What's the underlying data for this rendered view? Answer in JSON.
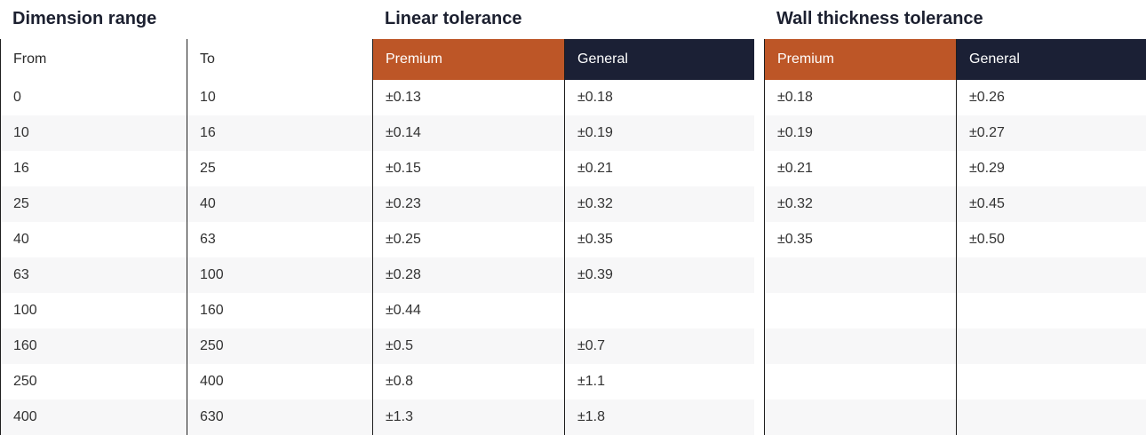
{
  "titles": {
    "dimension_range": "Dimension range",
    "linear_tolerance": "Linear tolerance",
    "wall_thickness_tolerance": "Wall thickness tolerance"
  },
  "headers": {
    "from": "From",
    "to": "To",
    "premium": "Premium",
    "general": "General"
  },
  "colors": {
    "premium": "#bd5627",
    "general": "#1b2035"
  },
  "columns": {
    "from": [
      "0",
      "10",
      "16",
      "25",
      "40",
      "63",
      "100",
      "160",
      "250",
      "400"
    ],
    "to": [
      "10",
      "16",
      "25",
      "40",
      "63",
      "100",
      "160",
      "250",
      "400",
      "630"
    ],
    "linear_premium": [
      "±0.13",
      "±0.14",
      "±0.15",
      "±0.23",
      "±0.25",
      "±0.28",
      "±0.44",
      "±0.5",
      "±0.8",
      "±1.3"
    ],
    "linear_general": [
      "±0.18",
      "±0.19",
      "±0.21",
      "±0.32",
      "±0.35",
      "±0.39",
      "",
      "±0.7",
      "±1.1",
      "±1.8"
    ],
    "wall_premium": [
      "±0.18",
      "±0.19",
      "±0.21",
      "±0.32",
      "±0.35",
      "",
      "",
      "",
      "",
      ""
    ],
    "wall_general": [
      "±0.26",
      "±0.27",
      "±0.29",
      "±0.45",
      "±0.50",
      "",
      "",
      "",
      "",
      ""
    ]
  }
}
